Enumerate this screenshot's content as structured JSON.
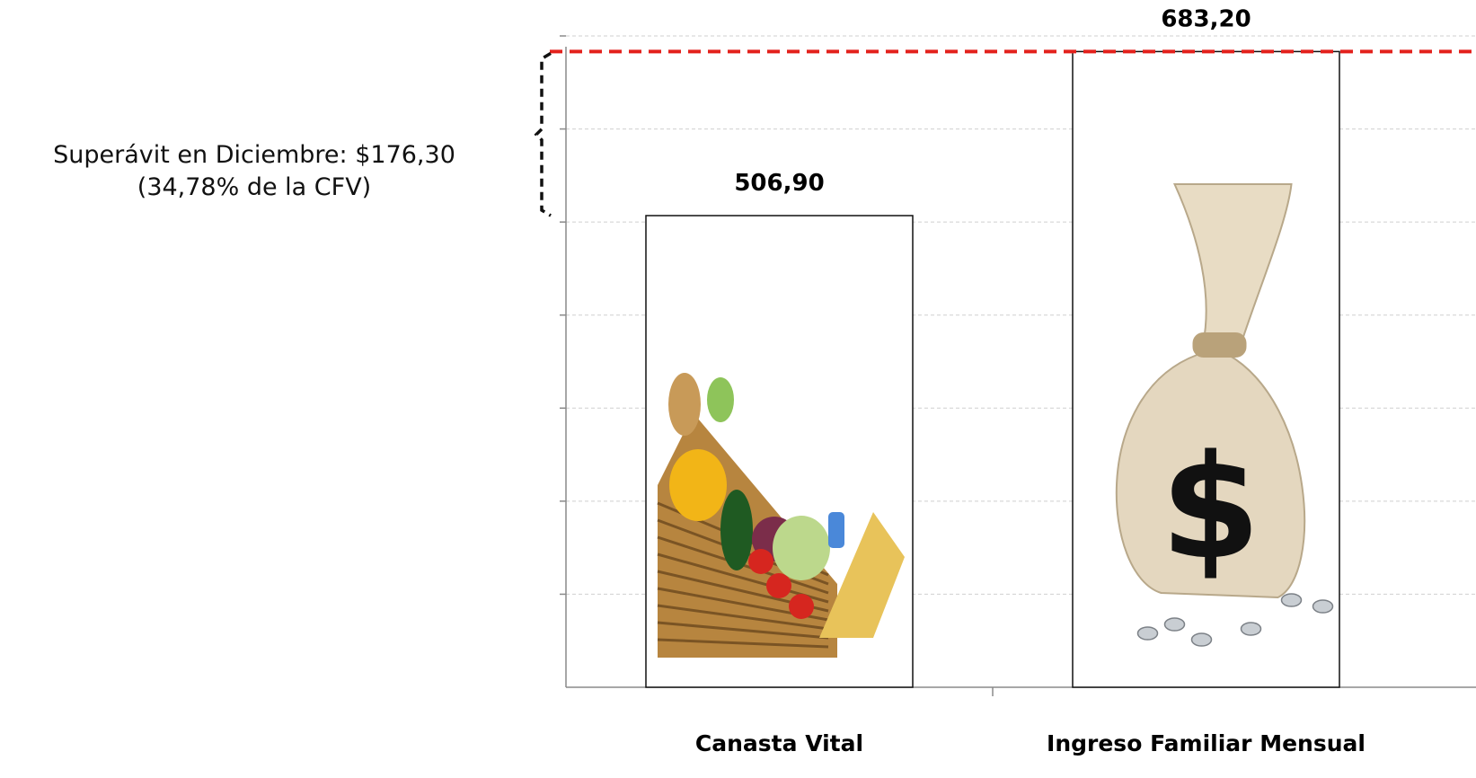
{
  "chart_data": {
    "type": "bar",
    "categories": [
      "Canasta Vital",
      "Ingreso Familiar Mensual"
    ],
    "values": [
      506.9,
      683.2
    ],
    "value_labels": [
      "506,90",
      "683,20"
    ],
    "ylim": [
      0,
      700
    ],
    "y_tick_step": 100,
    "grid": true,
    "title": "",
    "xlabel": "",
    "ylabel": "",
    "reference_line": {
      "value": 683.2,
      "color": "#e3211c",
      "style": "dashed"
    },
    "bracket_range": [
      506.9,
      683.2
    ],
    "bar_images": [
      "vegetable-basket",
      "money-bag"
    ],
    "annotation": {
      "line1": "Superávit en Diciembre: $176,30",
      "line2": "(34,78% de la CFV)"
    }
  }
}
